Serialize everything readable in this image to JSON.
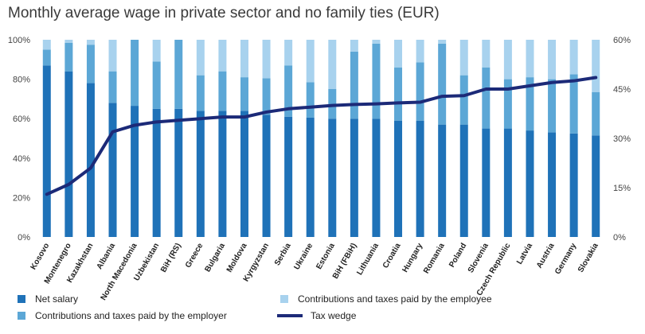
{
  "colors": {
    "net_salary": "#1f72b8",
    "employer": "#5ca7d6",
    "employee": "#a8d2ee",
    "tax_wedge": "#1c2a78",
    "axis_text": "#444444"
  },
  "chart_data": {
    "type": "bar",
    "stacked": true,
    "title": "Monthly average wage in private sector and no family ties (EUR)",
    "categories": [
      "Kosovo",
      "Montenegro",
      "Kazakhstan",
      "Albania",
      "North Macedonia",
      "Uzbekistan",
      "BiH (RS)",
      "Greece",
      "Bulgaria",
      "Moldova",
      "Kyrgyzstan",
      "Serbia",
      "Ukraine",
      "Estonia",
      "BiH (FBiH)",
      "Lithuania",
      "Croatia",
      "Hungary",
      "Romania",
      "Poland",
      "Slovenia",
      "Czech Republic",
      "Latvia",
      "Austria",
      "Germany",
      "Slovakia"
    ],
    "series": [
      {
        "name": "Net salary",
        "axis": "left",
        "values": [
          87,
          84,
          78,
          68,
          66.5,
          65,
          65,
          64,
          64,
          64,
          62,
          61,
          60.5,
          60,
          60,
          60,
          59,
          59,
          57,
          57,
          55,
          55,
          54,
          53,
          52.5,
          51.5
        ]
      },
      {
        "name": "Contributions and taxes paid by the employer",
        "axis": "left",
        "values": [
          8,
          14.5,
          19.5,
          16,
          33.5,
          24,
          35,
          18,
          20,
          17,
          18.5,
          26,
          18,
          15,
          34,
          38,
          27,
          29.5,
          41,
          25,
          31,
          25,
          27,
          27,
          30,
          22
        ]
      },
      {
        "name": "Contributions and taxes paid by the employee",
        "axis": "left",
        "values": [
          5,
          1.5,
          2.5,
          16,
          0,
          11,
          0,
          18,
          16,
          19,
          19.5,
          13,
          21.5,
          25,
          6,
          2,
          14,
          11.5,
          2,
          18,
          14,
          20,
          19,
          20,
          17.5,
          26.5
        ]
      },
      {
        "name": "Tax wedge",
        "axis": "right",
        "type": "line",
        "values": [
          13,
          16,
          21,
          32,
          34,
          35,
          35.5,
          36,
          36.5,
          36.5,
          38,
          39,
          39.5,
          40,
          40.3,
          40.5,
          40.8,
          41,
          42.8,
          43,
          45,
          45,
          46,
          47,
          47.5,
          48.5
        ]
      }
    ],
    "y_left": {
      "ylim": [
        0,
        100
      ],
      "ticks": [
        "0%",
        "20%",
        "40%",
        "60%",
        "80%",
        "100%"
      ]
    },
    "y_right": {
      "ylim": [
        0,
        60
      ],
      "ticks": [
        "0%",
        "15%",
        "30%",
        "45%",
        "60%"
      ]
    },
    "legend": {
      "placement": "bottom",
      "entries": [
        "Net salary",
        "Contributions and taxes paid by the employee",
        "Contributions and taxes paid by the employer",
        "Tax wedge"
      ]
    },
    "grid": false
  }
}
